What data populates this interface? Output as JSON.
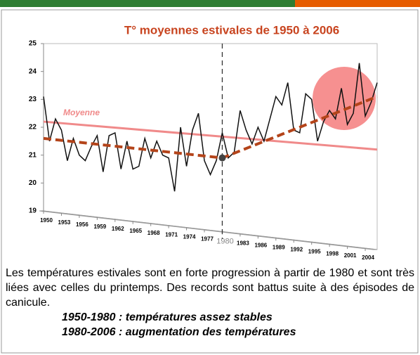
{
  "chart_data": {
    "type": "line",
    "title": "T° moyennes estivales de 1950 à 2006",
    "x": [
      1950,
      1951,
      1952,
      1953,
      1954,
      1955,
      1956,
      1957,
      1958,
      1959,
      1960,
      1961,
      1962,
      1963,
      1964,
      1965,
      1966,
      1967,
      1968,
      1969,
      1970,
      1971,
      1972,
      1973,
      1974,
      1975,
      1976,
      1977,
      1978,
      1979,
      1980,
      1981,
      1982,
      1983,
      1984,
      1985,
      1986,
      1987,
      1988,
      1989,
      1990,
      1991,
      1992,
      1993,
      1994,
      1995,
      1996,
      1997,
      1998,
      1999,
      2000,
      2001,
      2002,
      2003,
      2004,
      2005,
      2006
    ],
    "series": [
      {
        "color": "#111111",
        "values": [
          23.1,
          21.5,
          22.3,
          21.9,
          20.8,
          21.6,
          21.0,
          20.8,
          21.3,
          21.7,
          20.4,
          21.7,
          21.8,
          20.5,
          21.5,
          20.5,
          20.6,
          21.6,
          20.9,
          21.5,
          21.0,
          20.9,
          19.7,
          22.0,
          20.6,
          21.9,
          22.5,
          20.8,
          20.3,
          20.8,
          21.8,
          20.9,
          21.1,
          22.6,
          21.9,
          21.4,
          22.0,
          21.5,
          22.3,
          23.1,
          22.8,
          23.6,
          21.9,
          21.8,
          23.2,
          23.0,
          21.5,
          22.2,
          22.6,
          22.3,
          23.4,
          22.1,
          22.5,
          24.3,
          22.4,
          22.9,
          23.6
        ]
      }
    ],
    "xlim": [
      1950,
      2006
    ],
    "xticks": [
      1950,
      1953,
      1956,
      1959,
      1962,
      1965,
      1968,
      1971,
      1974,
      1977,
      1980,
      1983,
      1986,
      1989,
      1992,
      1995,
      1998,
      2001,
      2004
    ],
    "ylim": [
      19,
      25
    ],
    "yticks": [
      19,
      20,
      21,
      22,
      23,
      24,
      25
    ],
    "mean_line": {
      "label": "Moyenne",
      "color": "#f08a8a",
      "x": [
        1950,
        2006
      ],
      "y": [
        22.2,
        21.2
      ]
    },
    "trend": {
      "color": "#b4441a",
      "x": [
        1950,
        1980,
        2006
      ],
      "y": [
        21.6,
        20.9,
        23.1
      ]
    },
    "divider": 1980
  },
  "caption": {
    "paragraph": "Les températures estivales sont en forte progression à partir de 1980 et sont très liées avec celles du printemps. Des records sont battus suite à des épisodes de canicule.",
    "points": [
      "1950-1980 : températures assez stables",
      "1980-2006 : augmentation des températures"
    ]
  }
}
